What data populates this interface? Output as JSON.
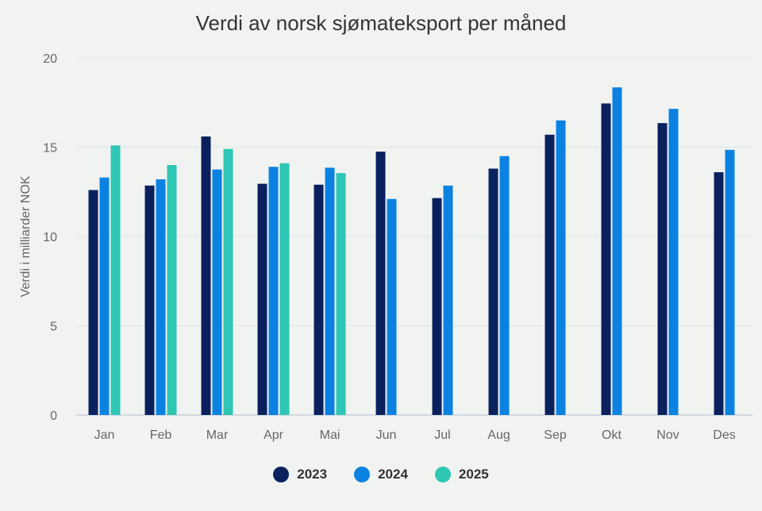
{
  "chart_data": {
    "type": "bar",
    "title": "Verdi av norsk sjømateksport per måned",
    "xlabel": "",
    "ylabel": "Verdi i milliarder NOK",
    "ylim": [
      0,
      20
    ],
    "yticks": [
      0,
      5,
      10,
      15,
      20
    ],
    "grid": true,
    "legend_position": "bottom",
    "categories": [
      "Jan",
      "Feb",
      "Mar",
      "Apr",
      "Mai",
      "Jun",
      "Jul",
      "Aug",
      "Sep",
      "Okt",
      "Nov",
      "Des"
    ],
    "series": [
      {
        "name": "2023",
        "color": "#0a215e",
        "values": [
          12.6,
          12.85,
          15.6,
          12.95,
          12.9,
          14.75,
          12.15,
          13.8,
          15.7,
          17.45,
          16.35,
          13.6
        ]
      },
      {
        "name": "2024",
        "color": "#0b82e1",
        "values": [
          13.3,
          13.2,
          13.75,
          13.9,
          13.85,
          12.1,
          12.85,
          14.5,
          16.5,
          18.35,
          17.15,
          14.85
        ]
      },
      {
        "name": "2025",
        "color": "#2ec6b4",
        "values": [
          15.1,
          14.0,
          14.9,
          14.1,
          13.55,
          null,
          null,
          null,
          null,
          null,
          null,
          null
        ]
      }
    ]
  }
}
